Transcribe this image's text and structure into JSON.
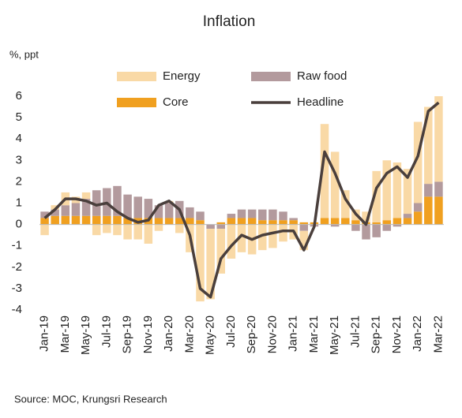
{
  "chart_data": {
    "type": "bar",
    "title": "Inflation",
    "y_label": "%, ppt",
    "source": "Source:  MOC, Krungsri Research",
    "categories": [
      "Jan-19",
      null,
      "Mar-19",
      null,
      "May-19",
      null,
      "Jul-19",
      null,
      "Sep-19",
      null,
      "Nov-19",
      null,
      "Jan-20",
      null,
      "Mar-20",
      null,
      "May-20",
      null,
      "Jul-20",
      null,
      "Sep-20",
      null,
      "Nov-20",
      null,
      "Jan-21",
      null,
      "Mar-21",
      null,
      "May-21",
      null,
      "Jul-21",
      null,
      "Sep-21",
      null,
      "Nov-21",
      null,
      "Jan-22",
      null,
      "Mar-22"
    ],
    "series": [
      {
        "name": "Core",
        "type": "bar",
        "color": "#f0a020",
        "values": [
          0.3,
          0.4,
          0.4,
          0.4,
          0.4,
          0.4,
          0.4,
          0.4,
          0.3,
          0.3,
          0.3,
          0.3,
          0.3,
          0.3,
          0.3,
          0.2,
          0.0,
          0.1,
          0.3,
          0.3,
          0.3,
          0.2,
          0.2,
          0.2,
          0.2,
          0.1,
          0.1,
          0.3,
          0.3,
          0.3,
          0.2,
          0.1,
          0.1,
          0.2,
          0.3,
          0.3,
          0.6,
          1.3,
          1.3
        ]
      },
      {
        "name": "Raw food",
        "type": "bar",
        "color": "#b39a9d",
        "values": [
          0.3,
          0.3,
          0.5,
          0.6,
          0.8,
          1.2,
          1.3,
          1.4,
          1.1,
          1.0,
          0.9,
          0.6,
          0.7,
          0.8,
          0.5,
          0.4,
          -0.2,
          -0.2,
          0.2,
          0.4,
          0.4,
          0.5,
          0.5,
          0.4,
          0.1,
          -0.3,
          -0.1,
          0.0,
          -0.1,
          0.0,
          -0.3,
          -0.7,
          -0.6,
          -0.3,
          -0.1,
          0.2,
          0.4,
          0.6,
          0.7
        ]
      },
      {
        "name": "Energy",
        "type": "bar",
        "color": "#f9d9a6",
        "values": [
          -0.5,
          0.2,
          0.6,
          0.3,
          0.3,
          -0.5,
          -0.4,
          -0.5,
          -0.7,
          -0.7,
          -0.9,
          -0.3,
          0.1,
          -0.4,
          -1.3,
          -3.6,
          -3.3,
          -2.1,
          -1.6,
          -1.3,
          -1.4,
          -1.2,
          -1.1,
          -0.8,
          -0.7,
          -0.9,
          0.0,
          4.4,
          3.1,
          1.3,
          0.5,
          0.5,
          2.4,
          2.8,
          2.6,
          2.1,
          3.8,
          3.6,
          4.0
        ]
      },
      {
        "name": "Headline",
        "type": "line",
        "color": "#4a3f3c",
        "values": [
          0.3,
          0.7,
          1.2,
          1.2,
          1.1,
          0.9,
          1.0,
          0.6,
          0.3,
          0.1,
          0.2,
          0.9,
          1.1,
          0.7,
          -0.5,
          -3.0,
          -3.4,
          -1.6,
          -1.0,
          -0.5,
          -0.7,
          -0.5,
          -0.4,
          -0.3,
          -0.3,
          -1.2,
          -0.1,
          3.4,
          2.4,
          1.2,
          0.5,
          0.0,
          1.7,
          2.4,
          2.7,
          2.2,
          3.2,
          5.3,
          5.7
        ]
      }
    ],
    "ylim": [
      -4,
      6
    ],
    "yticks": [
      -4,
      -3,
      -2,
      -1,
      0,
      1,
      2,
      3,
      4,
      5,
      6
    ],
    "grid": false
  }
}
